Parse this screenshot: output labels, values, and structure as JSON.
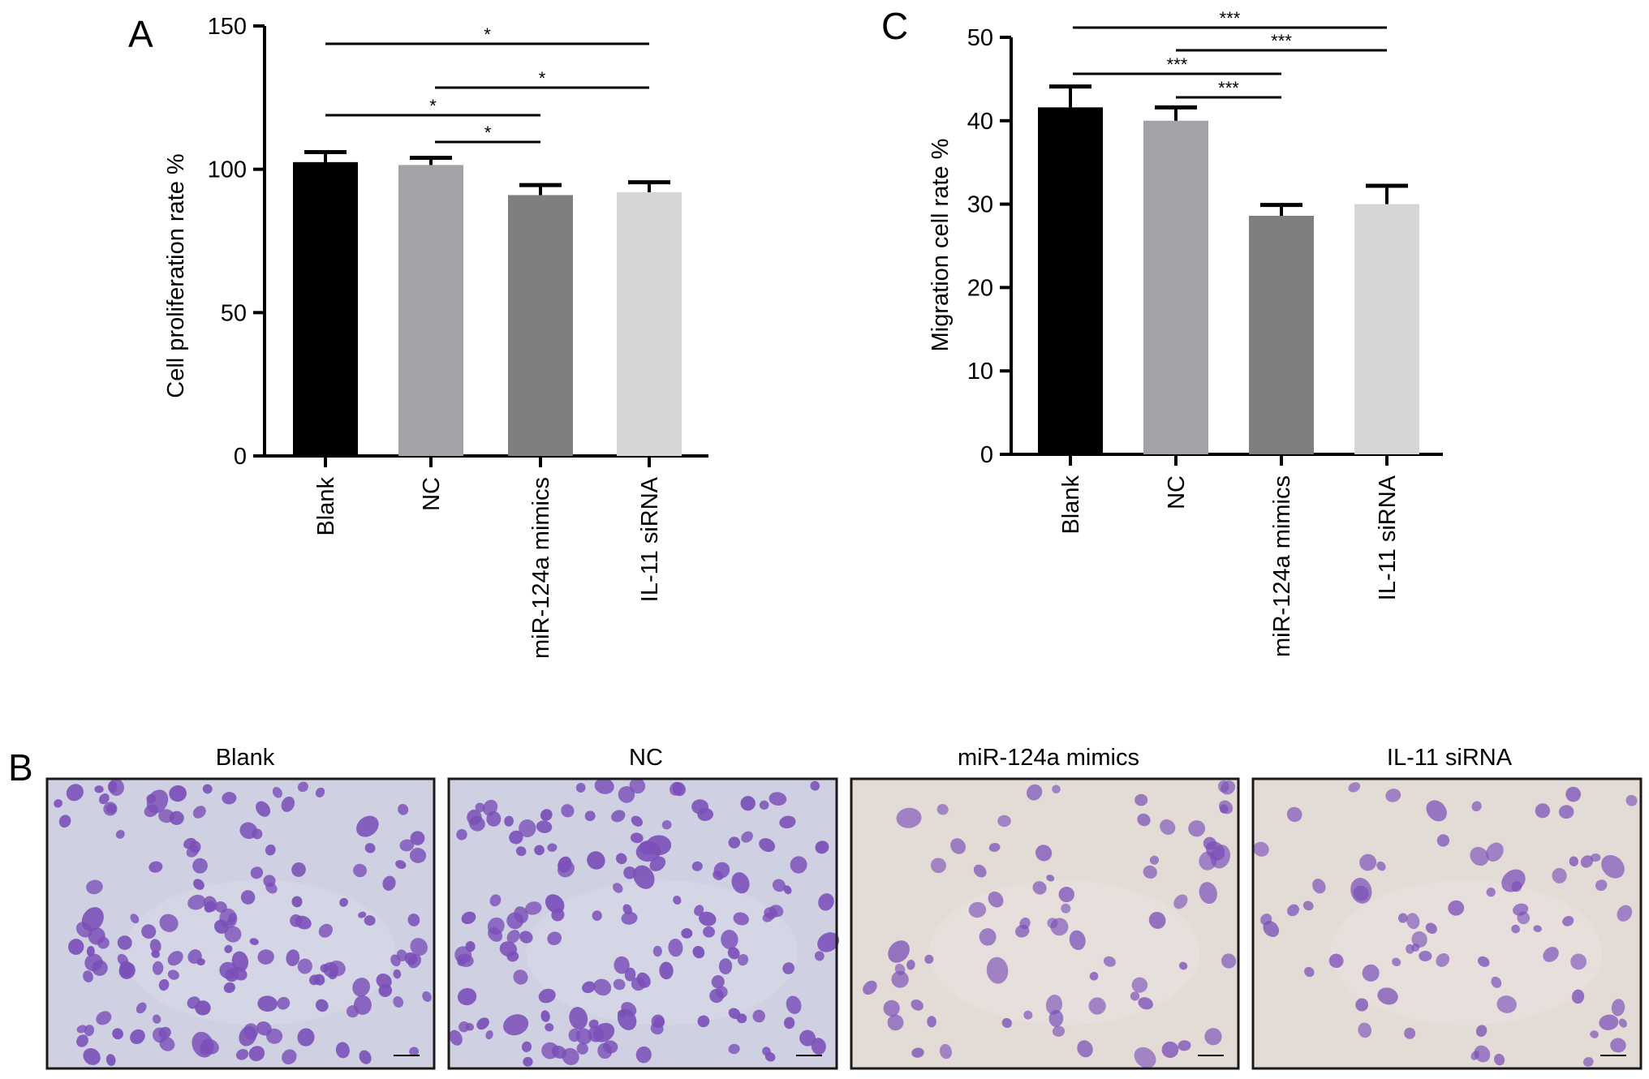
{
  "panels": {
    "a": "A",
    "b": "B",
    "c": "C"
  },
  "colors": {
    "bar_fills": [
      "#000000",
      "#a2a3a6",
      "#7e7f80",
      "#d6d6d6"
    ],
    "axis": "#000000",
    "stain": "#7a4fb8",
    "background_cool": "#cfd1e2",
    "background_warm": "#e3dbd6"
  },
  "chart_data": [
    {
      "panel": "A",
      "type": "bar",
      "categories": [
        "Blank",
        "NC",
        "miR-124a mimics",
        "IL-11 siRNA"
      ],
      "values": [
        102.5,
        101.5,
        91,
        92
      ],
      "errors": [
        3.5,
        2.5,
        3.5,
        3.5
      ],
      "ylabel": "Cell proliferation rate %",
      "xlabel": "",
      "ylim": [
        0,
        150
      ],
      "yticks": [
        0,
        50,
        100,
        150
      ],
      "significance": [
        {
          "from": 0,
          "to": 3,
          "label": "*"
        },
        {
          "from": 1,
          "to": 3,
          "label": "*"
        },
        {
          "from": 0,
          "to": 2,
          "label": "*"
        },
        {
          "from": 1,
          "to": 2,
          "label": "*"
        }
      ]
    },
    {
      "panel": "C",
      "type": "bar",
      "categories": [
        "Blank",
        "NC",
        "miR-124a mimics",
        "IL-11 siRNA"
      ],
      "values": [
        41.6,
        40,
        28.6,
        30
      ],
      "errors": [
        2.5,
        1.6,
        1.3,
        2.2
      ],
      "ylabel": "Migration cell rate %",
      "xlabel": "",
      "ylim": [
        0,
        50
      ],
      "yticks": [
        0,
        10,
        20,
        30,
        40,
        50
      ],
      "significance": [
        {
          "from": 0,
          "to": 3,
          "label": "***"
        },
        {
          "from": 1,
          "to": 3,
          "label": "***"
        },
        {
          "from": 0,
          "to": 2,
          "label": "***"
        },
        {
          "from": 1,
          "to": 2,
          "label": "***"
        }
      ]
    }
  ],
  "micrographs": [
    {
      "title": "Blank",
      "density": "high",
      "tone": "cool"
    },
    {
      "title": "NC",
      "density": "high",
      "tone": "cool"
    },
    {
      "title": "miR-124a mimics",
      "density": "low",
      "tone": "warm"
    },
    {
      "title": "IL-11 siRNA",
      "density": "low",
      "tone": "warm"
    }
  ]
}
